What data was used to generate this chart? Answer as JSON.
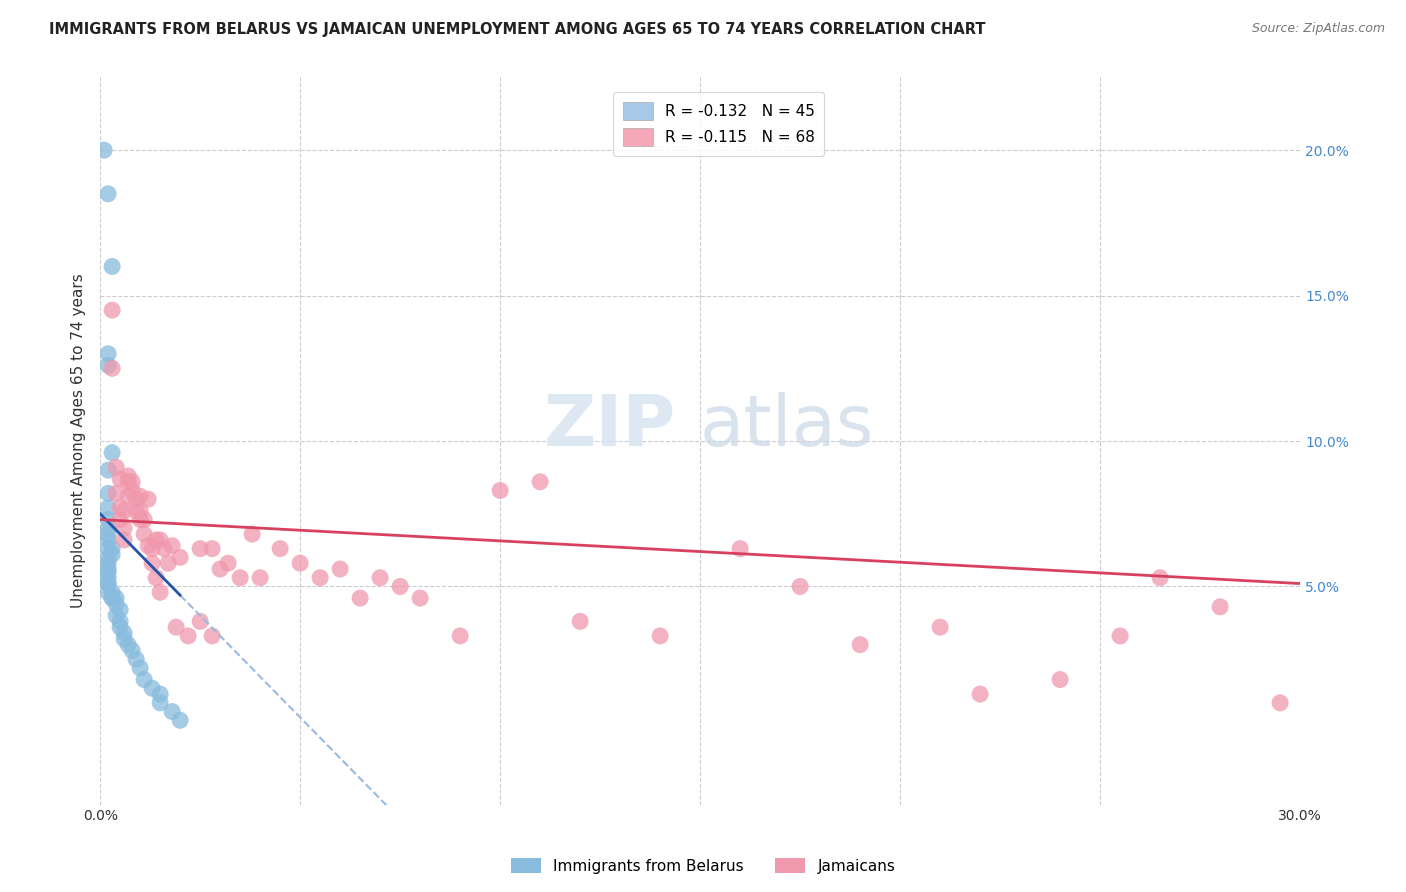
{
  "title": "IMMIGRANTS FROM BELARUS VS JAMAICAN UNEMPLOYMENT AMONG AGES 65 TO 74 YEARS CORRELATION CHART",
  "source": "Source: ZipAtlas.com",
  "ylabel": "Unemployment Among Ages 65 to 74 years",
  "xlim": [
    0.0,
    0.3
  ],
  "ylim": [
    -0.025,
    0.225
  ],
  "yticks_right": [
    0.05,
    0.1,
    0.15,
    0.2
  ],
  "ytick_labels_right": [
    "5.0%",
    "10.0%",
    "15.0%",
    "20.0%"
  ],
  "legend1_label": "R = -0.132   N = 45",
  "legend2_label": "R = -0.115   N = 68",
  "legend1_color": "#a8c8e8",
  "legend2_color": "#f4a8b8",
  "blue_color": "#88bbdd",
  "pink_color": "#f098ac",
  "trendline_blue": "#2255aa",
  "trendline_pink": "#d84060",
  "trendline_blue_dashed": "#99bbdd",
  "background_color": "#ffffff",
  "grid_color": "#cccccc",
  "watermark_zip": "ZIP",
  "watermark_atlas": "atlas",
  "blue_scatter_x": [
    0.001,
    0.002,
    0.003,
    0.002,
    0.002,
    0.003,
    0.002,
    0.002,
    0.002,
    0.002,
    0.002,
    0.002,
    0.002,
    0.002,
    0.003,
    0.003,
    0.002,
    0.002,
    0.002,
    0.002,
    0.002,
    0.002,
    0.002,
    0.003,
    0.002,
    0.003,
    0.003,
    0.004,
    0.004,
    0.005,
    0.004,
    0.005,
    0.005,
    0.006,
    0.006,
    0.007,
    0.008,
    0.009,
    0.01,
    0.011,
    0.013,
    0.015,
    0.015,
    0.018,
    0.02
  ],
  "blue_scatter_y": [
    0.2,
    0.185,
    0.16,
    0.13,
    0.126,
    0.096,
    0.09,
    0.082,
    0.077,
    0.073,
    0.07,
    0.068,
    0.066,
    0.063,
    0.063,
    0.061,
    0.06,
    0.058,
    0.056,
    0.055,
    0.053,
    0.051,
    0.051,
    0.048,
    0.048,
    0.046,
    0.046,
    0.046,
    0.044,
    0.042,
    0.04,
    0.038,
    0.036,
    0.034,
    0.032,
    0.03,
    0.028,
    0.025,
    0.022,
    0.018,
    0.015,
    0.013,
    0.01,
    0.007,
    0.004
  ],
  "pink_scatter_x": [
    0.003,
    0.003,
    0.004,
    0.004,
    0.005,
    0.005,
    0.005,
    0.006,
    0.006,
    0.006,
    0.007,
    0.007,
    0.007,
    0.008,
    0.008,
    0.009,
    0.009,
    0.01,
    0.01,
    0.01,
    0.011,
    0.011,
    0.012,
    0.012,
    0.013,
    0.013,
    0.014,
    0.014,
    0.015,
    0.015,
    0.016,
    0.017,
    0.018,
    0.019,
    0.02,
    0.022,
    0.025,
    0.025,
    0.028,
    0.028,
    0.03,
    0.032,
    0.035,
    0.038,
    0.04,
    0.045,
    0.05,
    0.055,
    0.06,
    0.065,
    0.07,
    0.075,
    0.08,
    0.09,
    0.1,
    0.11,
    0.12,
    0.14,
    0.16,
    0.175,
    0.19,
    0.21,
    0.22,
    0.24,
    0.255,
    0.265,
    0.28,
    0.295
  ],
  "pink_scatter_y": [
    0.145,
    0.125,
    0.091,
    0.082,
    0.077,
    0.073,
    0.087,
    0.066,
    0.076,
    0.07,
    0.086,
    0.081,
    0.088,
    0.083,
    0.086,
    0.076,
    0.08,
    0.076,
    0.081,
    0.073,
    0.073,
    0.068,
    0.08,
    0.064,
    0.063,
    0.058,
    0.066,
    0.053,
    0.066,
    0.048,
    0.063,
    0.058,
    0.064,
    0.036,
    0.06,
    0.033,
    0.063,
    0.038,
    0.063,
    0.033,
    0.056,
    0.058,
    0.053,
    0.068,
    0.053,
    0.063,
    0.058,
    0.053,
    0.056,
    0.046,
    0.053,
    0.05,
    0.046,
    0.033,
    0.083,
    0.086,
    0.038,
    0.033,
    0.063,
    0.05,
    0.03,
    0.036,
    0.013,
    0.018,
    0.033,
    0.053,
    0.043,
    0.01
  ],
  "trendline_blue_x0": 0.0,
  "trendline_blue_y0": 0.075,
  "trendline_blue_x1": 0.02,
  "trendline_blue_y1": 0.047,
  "trendline_blue_dash_x1": 0.3,
  "trendline_blue_dash_y1": -0.03,
  "trendline_pink_x0": 0.0,
  "trendline_pink_y0": 0.073,
  "trendline_pink_x1": 0.3,
  "trendline_pink_y1": 0.051
}
